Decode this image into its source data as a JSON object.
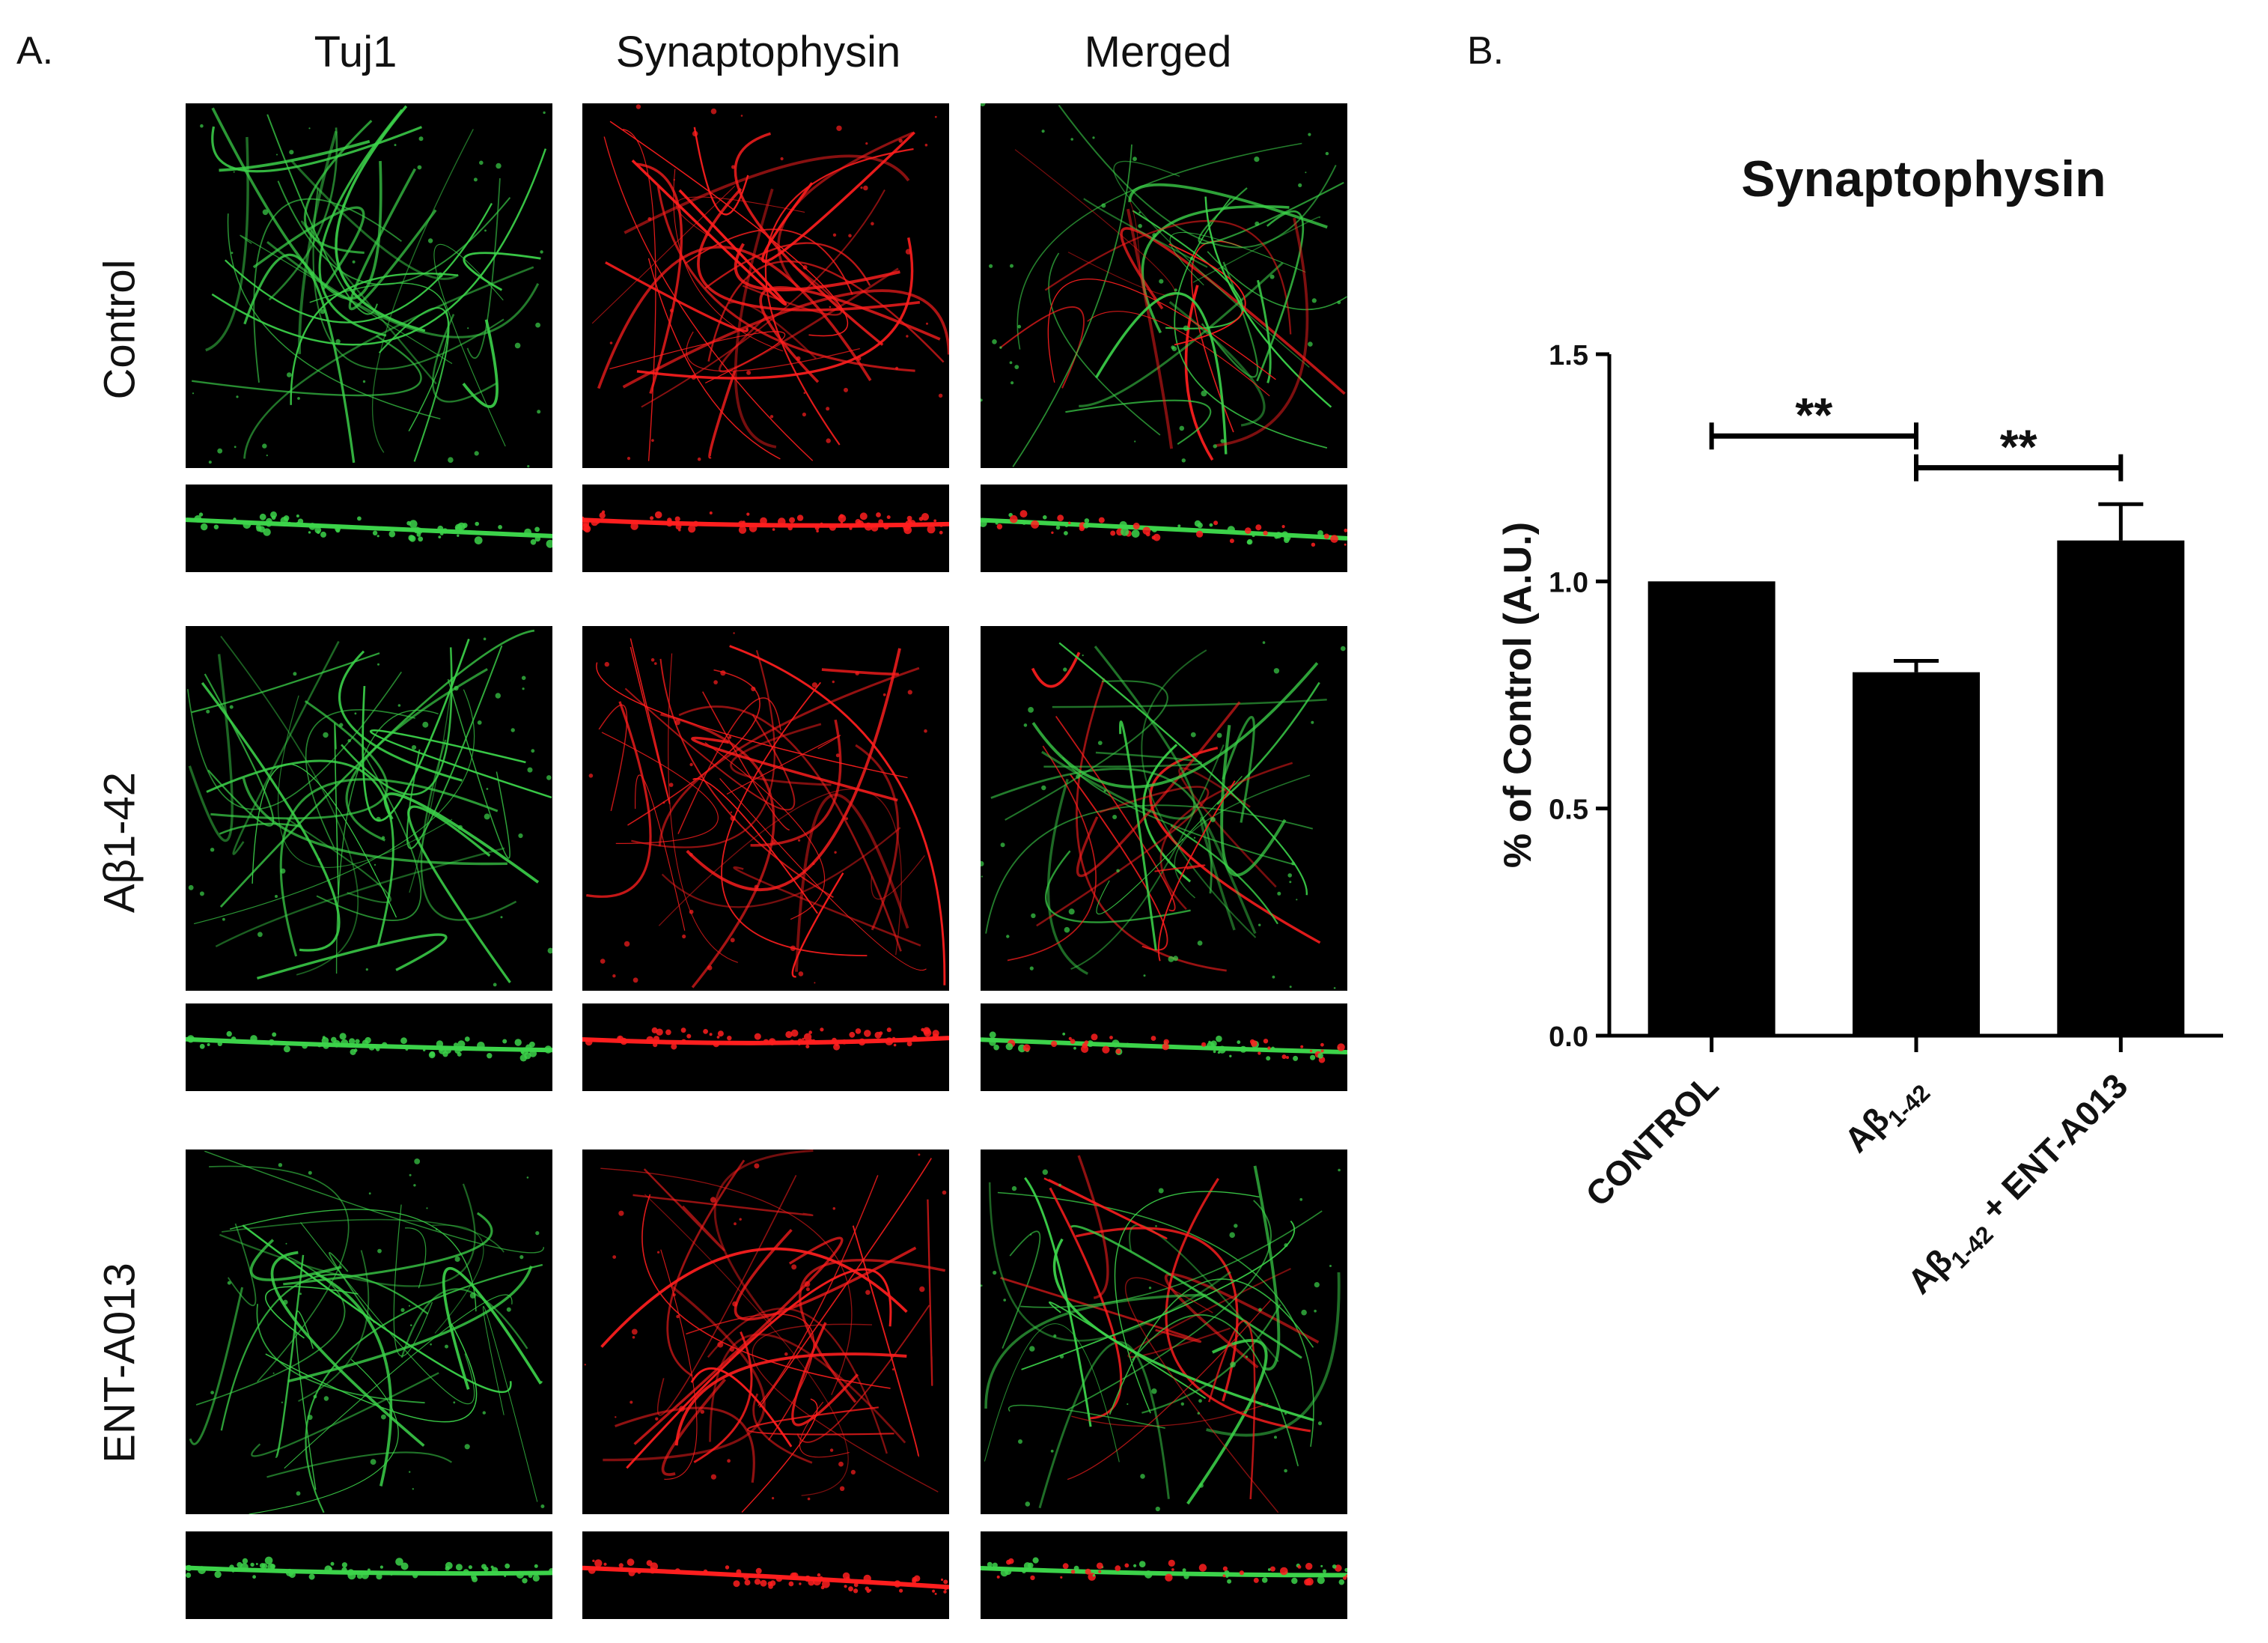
{
  "panel_a": {
    "letter": "A.",
    "column_headers": [
      "Tuj1",
      "Synaptophysin",
      "Merged"
    ],
    "row_labels": [
      "Control",
      "Aβ1-42",
      "ENT-A013"
    ]
  },
  "panel_b": {
    "letter": "B."
  },
  "colors": {
    "tuj1": "#3cd34a",
    "synaptophysin": "#ff1e1e",
    "merged": "#e3c83a",
    "bars": "#000000"
  },
  "chart_data": {
    "type": "bar",
    "title": "Synaptophysin",
    "ylabel": "% of Control (A.U.)",
    "xlabel": "",
    "ylim": [
      0,
      1.5
    ],
    "yticks": [
      "0.0",
      "0.5",
      "1.0",
      "1.5"
    ],
    "categories": [
      {
        "main": "CONTROL",
        "sub": "",
        "suffix": ""
      },
      {
        "main": "Aβ",
        "sub": "1-42",
        "suffix": ""
      },
      {
        "main": "Aβ",
        "sub": "1-42",
        "suffix": " + ENT-A013"
      }
    ],
    "values": [
      1.0,
      0.8,
      1.09
    ],
    "errors": [
      0.0,
      0.025,
      0.08
    ],
    "significance": [
      {
        "from": 0,
        "to": 1,
        "label": "**",
        "y": 1.32
      },
      {
        "from": 1,
        "to": 2,
        "label": "**",
        "y": 1.25
      }
    ]
  }
}
